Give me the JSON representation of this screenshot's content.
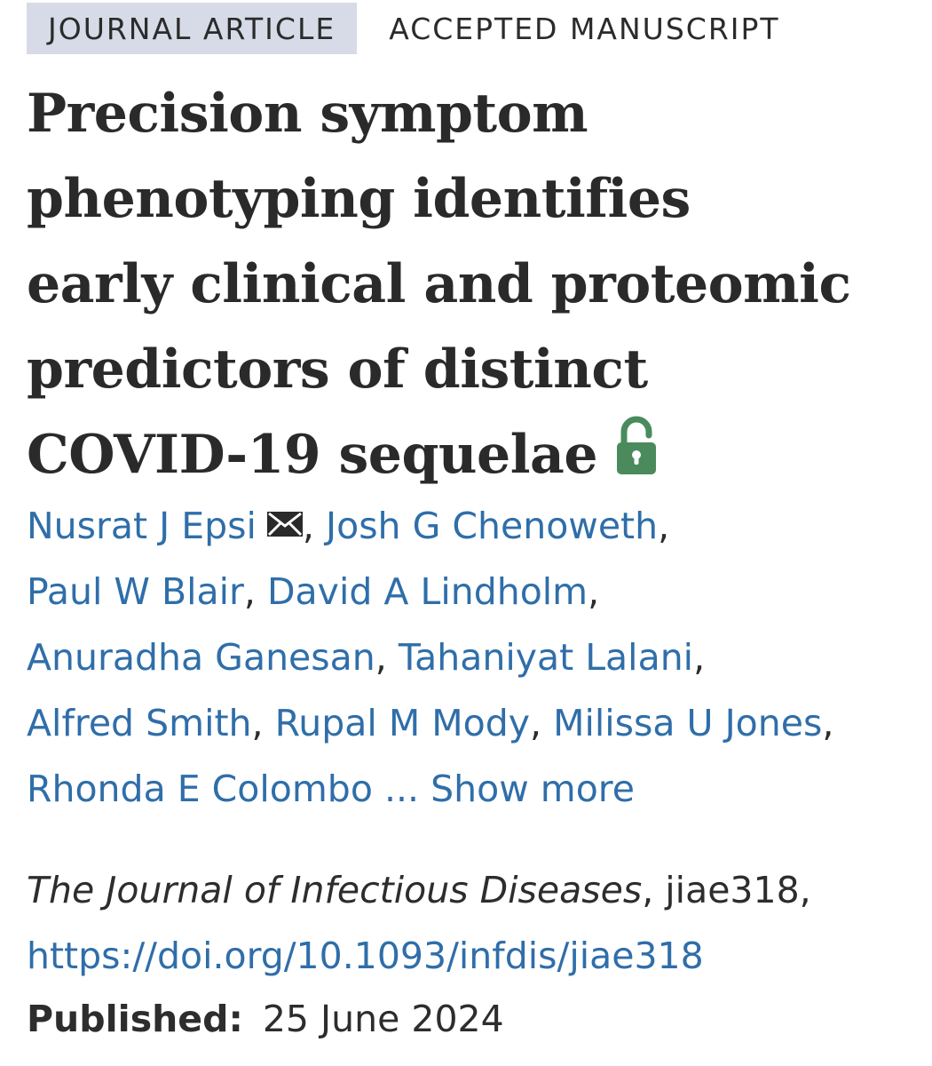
{
  "badges": {
    "article_type": "JOURNAL ARTICLE",
    "status": "ACCEPTED MANUSCRIPT"
  },
  "title": {
    "lines": [
      "Precision symptom",
      "phenotyping identifies",
      "early clinical and proteomic",
      "predictors of distinct",
      "COVID-19 sequelae"
    ],
    "open_access_icon": "unlocked-padlock-icon",
    "open_access_color": "#4a8a5c"
  },
  "authors": {
    "list": [
      "Nusrat J Epsi",
      "Josh G Chenoweth",
      "Paul W Blair",
      "David A Lindholm",
      "Anuradha Ganesan",
      "Tahaniyat Lalani",
      "Alfred Smith",
      "Rupal M Mody",
      "Milissa U Jones",
      "Rhonda E Colombo"
    ],
    "separator": ",",
    "ellipsis": "...",
    "show_more_label": "Show more",
    "contact_icon": "envelope-icon",
    "link_color": "#2f6ea9"
  },
  "citation": {
    "journal": "The Journal of Infectious Diseases",
    "article_id": ", jiae318,",
    "doi": "https://doi.org/10.1093/infdis/jiae318"
  },
  "published": {
    "label": "Published:",
    "date": "25 June 2024"
  }
}
